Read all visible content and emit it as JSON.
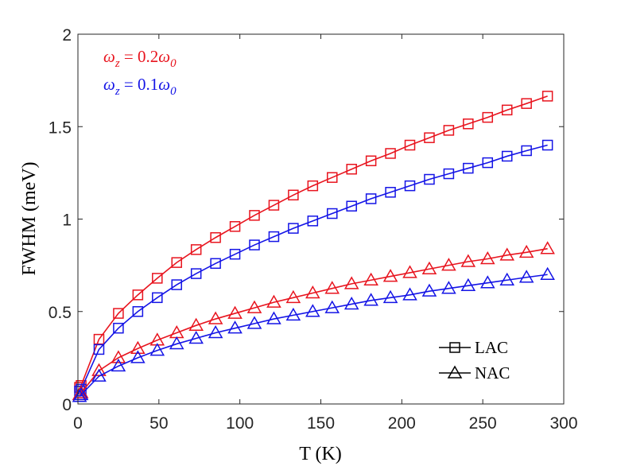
{
  "chart_data": {
    "type": "line",
    "title": "",
    "xlabel": "T (K)",
    "ylabel": "FWHM (meV)",
    "xlim": [
      0,
      300
    ],
    "ylim": [
      0,
      2
    ],
    "xticks": [
      0,
      50,
      100,
      150,
      200,
      250,
      300
    ],
    "yticks": [
      0,
      0.5,
      1,
      1.5,
      2
    ],
    "xtick_labels": [
      "0",
      "50",
      "100",
      "150",
      "200",
      "250",
      "300"
    ],
    "ytick_labels": [
      "0",
      "0.5",
      "1",
      "1.5",
      "2"
    ],
    "grid": false,
    "x": [
      1,
      2,
      13,
      25,
      37,
      49,
      61,
      73,
      85,
      97,
      109,
      121,
      133,
      145,
      157,
      169,
      181,
      193,
      205,
      217,
      229,
      241,
      253,
      265,
      277,
      290
    ],
    "series": [
      {
        "name": "LAC, ωz = 0.2ω0",
        "color": "#e8141e",
        "marker": "square",
        "values": [
          0.09,
          0.1,
          0.35,
          0.49,
          0.59,
          0.68,
          0.765,
          0.835,
          0.9,
          0.96,
          1.02,
          1.075,
          1.13,
          1.18,
          1.225,
          1.27,
          1.315,
          1.355,
          1.4,
          1.44,
          1.48,
          1.515,
          1.55,
          1.59,
          1.625,
          1.665
        ]
      },
      {
        "name": "LAC, ωz = 0.1ω0",
        "color": "#1414e6",
        "marker": "square",
        "values": [
          0.07,
          0.08,
          0.295,
          0.41,
          0.5,
          0.575,
          0.645,
          0.705,
          0.76,
          0.81,
          0.86,
          0.905,
          0.95,
          0.99,
          1.03,
          1.07,
          1.11,
          1.145,
          1.18,
          1.215,
          1.245,
          1.275,
          1.305,
          1.34,
          1.37,
          1.4
        ]
      },
      {
        "name": "NAC, ωz = 0.2ω0",
        "color": "#e8141e",
        "marker": "triangle",
        "values": [
          0.05,
          0.06,
          0.18,
          0.25,
          0.3,
          0.345,
          0.385,
          0.425,
          0.46,
          0.49,
          0.52,
          0.55,
          0.575,
          0.6,
          0.625,
          0.65,
          0.67,
          0.69,
          0.71,
          0.73,
          0.75,
          0.77,
          0.785,
          0.805,
          0.82,
          0.84
        ]
      },
      {
        "name": "NAC, ωz = 0.1ω0",
        "color": "#1414e6",
        "marker": "triangle",
        "values": [
          0.04,
          0.05,
          0.15,
          0.205,
          0.25,
          0.29,
          0.325,
          0.355,
          0.385,
          0.41,
          0.435,
          0.46,
          0.48,
          0.5,
          0.52,
          0.54,
          0.56,
          0.575,
          0.59,
          0.61,
          0.625,
          0.64,
          0.655,
          0.67,
          0.685,
          0.7
        ]
      }
    ],
    "legend": {
      "placement": "bottom-right",
      "entries": [
        {
          "label": "LAC",
          "marker": "square"
        },
        {
          "label": "NAC",
          "marker": "triangle"
        }
      ]
    },
    "annotations": [
      {
        "text": "ωz = 0.2ω0",
        "color": "#e8141e"
      },
      {
        "text": "ωz = 0.1ω0",
        "color": "#1414e6"
      }
    ]
  }
}
